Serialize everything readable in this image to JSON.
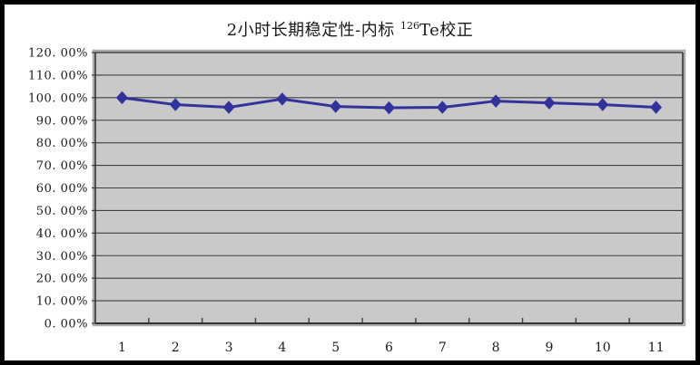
{
  "window": {
    "background_color": "#ffffff",
    "frame_color": "#000000"
  },
  "title": {
    "prefix": "2小时长期稳定性-内标 ",
    "superscript": "126",
    "suffix": "Te校正",
    "full_text": "2小时长期稳定性-内标 126Te校正"
  },
  "chart_data": {
    "type": "line",
    "title": "2小时长期稳定性-内标 126Te校正",
    "xlabel": "",
    "ylabel": "",
    "categories": [
      "1",
      "2",
      "3",
      "4",
      "5",
      "6",
      "7",
      "8",
      "9",
      "10",
      "11"
    ],
    "series": [
      {
        "name": "126Te校正",
        "values": [
          100.0,
          96.9,
          95.7,
          99.4,
          96.1,
          95.5,
          95.7,
          98.5,
          97.7,
          96.9,
          95.7
        ]
      }
    ],
    "ylim": [
      0,
      120
    ],
    "y_unit": "%",
    "y_tick_labels": [
      "0. 00%",
      "10. 00%",
      "20. 00%",
      "30. 00%",
      "40. 00%",
      "50. 00%",
      "60. 00%",
      "70. 00%",
      "80. 00%",
      "90. 00%",
      "100. 00%",
      "110. 00%",
      "120. 00%"
    ],
    "grid": "horizontal",
    "legend": "none",
    "marker": "diamond",
    "colors": {
      "line": "#32329B",
      "marker": "#32329B",
      "plot_fill": "#C9C9C9",
      "gridline": "#3F3F3F",
      "plot_border": "#333333",
      "plot_outer_highlight": "#ABABAB",
      "label_text": "#1A1A1A"
    }
  }
}
